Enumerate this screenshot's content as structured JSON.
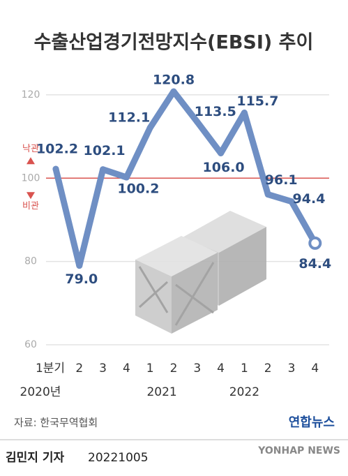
{
  "chart_data": {
    "type": "line",
    "title": "수출산업경기전망지수(EBSI) 추이",
    "categories": [
      "1분기",
      "2",
      "3",
      "4",
      "1",
      "2",
      "3",
      "4",
      "1",
      "2",
      "3",
      "4"
    ],
    "year_labels": [
      "2020년",
      "2021",
      "2022"
    ],
    "series": [
      {
        "color": "#6f8fc4",
        "values": [
          102.2,
          79.0,
          102.1,
          100.2,
          112.1,
          120.8,
          113.5,
          106.0,
          115.7,
          96.1,
          94.4,
          84.4
        ],
        "value_labels": [
          "102.2",
          "79.0",
          "102.1",
          "100.2",
          "112.1",
          "120.8",
          "113.5",
          "106.0",
          "115.7",
          "96.1",
          "94.4",
          "84.4"
        ]
      }
    ],
    "ylim": [
      60,
      124
    ],
    "yticks": [
      60,
      80,
      100,
      120
    ],
    "grid": true,
    "reference_line": {
      "value": 100,
      "color": "#d9534f",
      "above_label": "낙관",
      "below_label": "비관"
    },
    "source": "자료: 한국무역협회",
    "reporter": "김민지 기자",
    "date": "20221005",
    "logo": "연합뉴스",
    "watermark": "YONHAP NEWS"
  }
}
